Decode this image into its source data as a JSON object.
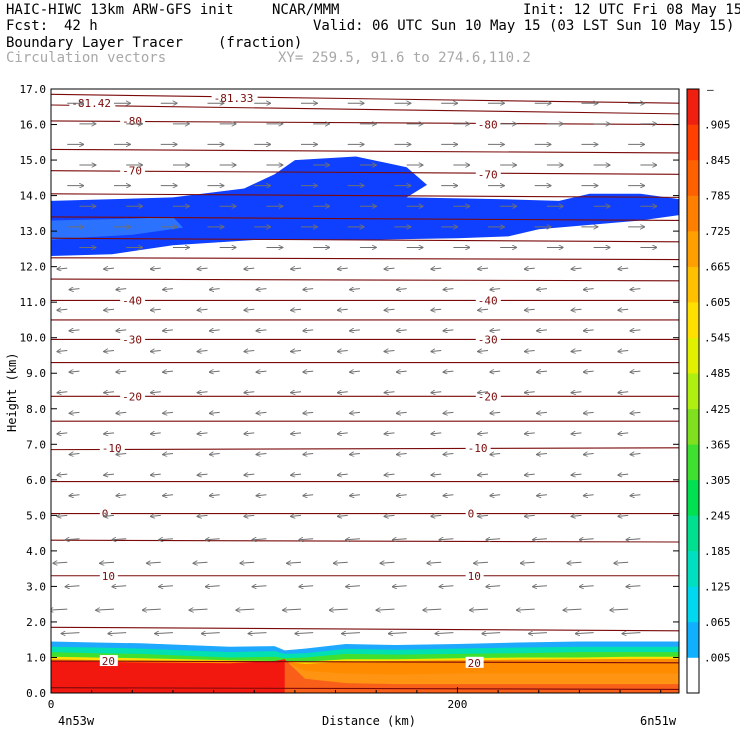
{
  "header": {
    "model": "HAIC-HIWC 13km ARW-GFS init",
    "org": "NCAR/MMM",
    "init": "Init: 12 UTC Fri 08 May 15",
    "fcst_label": "Fcst:",
    "fcst_value": "42 h",
    "valid": "Valid: 06 UTC Sun 10 May 15 (03 LST Sun 10 May 15)",
    "field": "Boundary Layer Tracer",
    "units": "(fraction)",
    "overlay": "Circulation vectors",
    "xy": "XY= 259.5, 91.6 to 274.6,110.2"
  },
  "chart_data": {
    "type": "heatmap",
    "ylabel": "Height (km)",
    "xlabel": "Distance (km)",
    "x_left_label": "4n53w",
    "x_right_label": "6n51w",
    "x_tick_labels": [
      "0",
      "200"
    ],
    "x_ticks": [
      0,
      200
    ],
    "xlim": [
      0,
      309
    ],
    "ylim": [
      0,
      17
    ],
    "y_ticks": [
      0,
      1,
      2,
      3,
      4,
      5,
      6,
      7,
      8,
      9,
      10,
      11,
      12,
      13,
      14,
      15,
      16,
      17
    ],
    "y_tick_labels": [
      "0.0",
      "1.0",
      "2.0",
      "3.0",
      "4.0",
      "5.0",
      "6.0",
      "7.0",
      "8.0",
      "9.0",
      "10.0",
      "11.0",
      "12.0",
      "13.0",
      "14.0",
      "15.0",
      "16.0",
      "17.0"
    ],
    "colorbar": {
      "labels": [
        ".005",
        ".065",
        ".125",
        ".185",
        ".245",
        ".305",
        ".365",
        ".425",
        ".485",
        ".545",
        ".605",
        ".665",
        ".725",
        ".785",
        ".845",
        ".905"
      ],
      "top_label": "–",
      "colors": [
        "#ffffff",
        "#10b0ff",
        "#00d8f0",
        "#00e0c0",
        "#00e090",
        "#00e050",
        "#40e030",
        "#80e020",
        "#b0f010",
        "#e0f000",
        "#ffe000",
        "#ffc000",
        "#ffa000",
        "#ff8000",
        "#ff6000",
        "#ff4000",
        "#f02010"
      ]
    },
    "tracer_regions": [
      {
        "name": "upper-layer",
        "color": "#1040ff",
        "outline": [
          [
            0,
            13.85
          ],
          [
            60,
            13.95
          ],
          [
            95,
            14.2
          ],
          [
            110,
            14.6
          ],
          [
            120,
            15.0
          ],
          [
            150,
            15.1
          ],
          [
            175,
            14.8
          ],
          [
            185,
            14.3
          ],
          [
            175,
            13.95
          ],
          [
            220,
            13.9
          ],
          [
            250,
            13.85
          ],
          [
            265,
            14.05
          ],
          [
            290,
            14.05
          ],
          [
            309,
            13.9
          ],
          [
            309,
            13.45
          ],
          [
            290,
            13.3
          ],
          [
            240,
            13.05
          ],
          [
            225,
            12.85
          ],
          [
            200,
            12.8
          ],
          [
            150,
            12.75
          ],
          [
            100,
            12.75
          ],
          [
            60,
            12.6
          ],
          [
            30,
            12.35
          ],
          [
            0,
            12.3
          ]
        ]
      },
      {
        "name": "upper-layer-core",
        "color": "#2b73ff",
        "outline": [
          [
            0,
            13.3
          ],
          [
            40,
            13.35
          ],
          [
            60,
            13.4
          ],
          [
            65,
            13.1
          ],
          [
            40,
            12.9
          ],
          [
            10,
            12.8
          ],
          [
            0,
            12.75
          ]
        ]
      }
    ],
    "boundary_layer": {
      "bands": [
        {
          "color": "#1fa8ff",
          "top": [
            1.45,
            1.42,
            1.4,
            1.35,
            1.3,
            1.32,
            1.2,
            1.25,
            1.38,
            1.35,
            1.38,
            1.42,
            1.45,
            1.45,
            1.45
          ]
        },
        {
          "color": "#00e0b0",
          "top": [
            1.3,
            1.28,
            1.25,
            1.2,
            1.15,
            1.18,
            1.1,
            1.12,
            1.24,
            1.22,
            1.25,
            1.28,
            1.3,
            1.3,
            1.3
          ]
        },
        {
          "color": "#40e030",
          "top": [
            1.15,
            1.12,
            1.1,
            1.05,
            1.0,
            1.02,
            0.98,
            1.0,
            1.1,
            1.08,
            1.1,
            1.12,
            1.15,
            1.15,
            1.15
          ]
        },
        {
          "color": "#ffe000",
          "top": [
            1.02,
            1.0,
            0.98,
            0.95,
            0.92,
            0.9,
            0.9,
            0.88,
            0.95,
            0.95,
            0.98,
            1.0,
            1.0,
            1.02,
            1.02
          ]
        },
        {
          "color": "#ff8c00",
          "top": [
            0.95,
            0.93,
            0.92,
            0.9,
            0.88,
            0.85,
            0.88,
            0.82,
            0.88,
            0.9,
            0.92,
            0.94,
            0.95,
            0.96,
            0.96
          ]
        },
        {
          "color": "#f21810",
          "top": [
            0.9,
            0.88,
            0.86,
            0.85,
            0.84,
            0.9,
            0.95,
            0.4,
            0.28,
            0.25,
            0.25,
            0.25,
            0.25,
            0.25,
            0.25
          ]
        }
      ],
      "x": [
        0,
        22,
        44,
        66,
        88,
        110,
        115,
        125,
        145,
        170,
        200,
        230,
        260,
        285,
        309
      ]
    },
    "contours": [
      {
        "label": "-81.42",
        "y": [
          16.55,
          16.3
        ],
        "label_pos": [
          10,
          16.6
        ]
      },
      {
        "label": "-81.33",
        "y": [
          16.85,
          16.6
        ],
        "label_pos": [
          80,
          16.75
        ]
      },
      {
        "label": "-80",
        "y": [
          16.1,
          16.0
        ],
        "label_pos": [
          [
            35,
            16.1
          ],
          [
            210,
            16.0
          ]
        ]
      },
      {
        "label": "",
        "y": [
          15.3,
          15.2
        ]
      },
      {
        "label": "-70",
        "y": [
          14.7,
          14.6
        ],
        "label_pos": [
          [
            35,
            14.7
          ],
          [
            210,
            14.6
          ]
        ]
      },
      {
        "label": "",
        "y": [
          14.05,
          13.95
        ]
      },
      {
        "label": "",
        "y": [
          13.4,
          13.3
        ]
      },
      {
        "label": "",
        "y": [
          12.8,
          12.7
        ]
      },
      {
        "label": "",
        "y": [
          12.25,
          12.2
        ]
      },
      {
        "label": "",
        "y": [
          11.65,
          11.6
        ]
      },
      {
        "label": "-40",
        "y": [
          11.05,
          11.05
        ],
        "label_pos": [
          [
            35,
            11.05
          ],
          [
            210,
            11.05
          ]
        ]
      },
      {
        "label": "",
        "y": [
          10.5,
          10.5
        ]
      },
      {
        "label": "-30",
        "y": [
          9.95,
          9.95
        ],
        "label_pos": [
          [
            35,
            9.95
          ],
          [
            210,
            9.95
          ]
        ]
      },
      {
        "label": "",
        "y": [
          9.3,
          9.3
        ]
      },
      {
        "label": "-20",
        "y": [
          8.35,
          8.35
        ],
        "label_pos": [
          [
            35,
            8.35
          ],
          [
            210,
            8.35
          ]
        ]
      },
      {
        "label": "",
        "y": [
          7.65,
          7.65
        ]
      },
      {
        "label": "-10",
        "y": [
          6.85,
          6.9
        ],
        "label_pos": [
          [
            25,
            6.9
          ],
          [
            205,
            6.9
          ]
        ]
      },
      {
        "label": "",
        "y": [
          5.95,
          5.95
        ]
      },
      {
        "label": "0",
        "y": [
          5.05,
          5.05
        ],
        "label_pos": [
          [
            25,
            5.05
          ],
          [
            205,
            5.05
          ]
        ]
      },
      {
        "label": "",
        "y": [
          4.3,
          4.25
        ]
      },
      {
        "label": "10",
        "y": [
          3.3,
          3.3
        ],
        "label_pos": [
          [
            25,
            3.3
          ],
          [
            205,
            3.3
          ]
        ]
      },
      {
        "label": "",
        "y": [
          1.85,
          1.75
        ]
      },
      {
        "label": "20",
        "y": [
          0.9,
          0.85
        ],
        "label_pos": [
          [
            25,
            0.9
          ],
          [
            205,
            0.85
          ]
        ]
      },
      {
        "label": "",
        "y": [
          0.15,
          0.1
        ]
      }
    ]
  }
}
